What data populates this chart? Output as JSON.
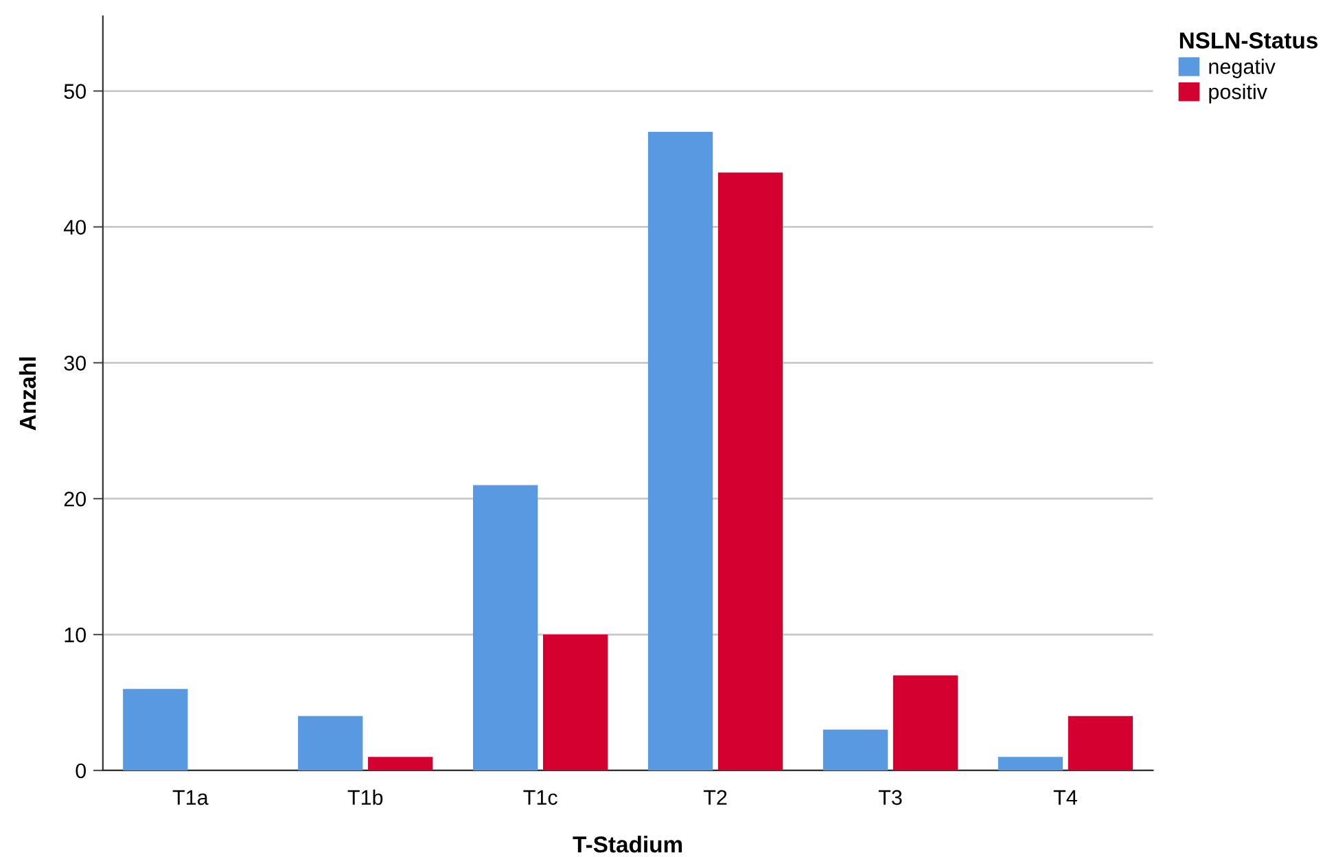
{
  "chart_data": {
    "type": "bar",
    "xlabel": "T-Stadium",
    "ylabel": "Anzahl",
    "legend_title": "NSLN-Status",
    "categories": [
      "T1a",
      "T1b",
      "T1c",
      "T2",
      "T3",
      "T4"
    ],
    "series": [
      {
        "name": "negativ",
        "color": "#5899e2",
        "values": [
          6,
          4,
          21,
          47,
          3,
          1
        ]
      },
      {
        "name": "positiv",
        "color": "#d4002f",
        "values": [
          0,
          1,
          10,
          44,
          7,
          4
        ]
      }
    ],
    "ylim": [
      0,
      55.5
    ],
    "yticks": [
      0,
      10,
      20,
      30,
      40,
      50
    ],
    "grid": "y",
    "legend": "top right"
  }
}
